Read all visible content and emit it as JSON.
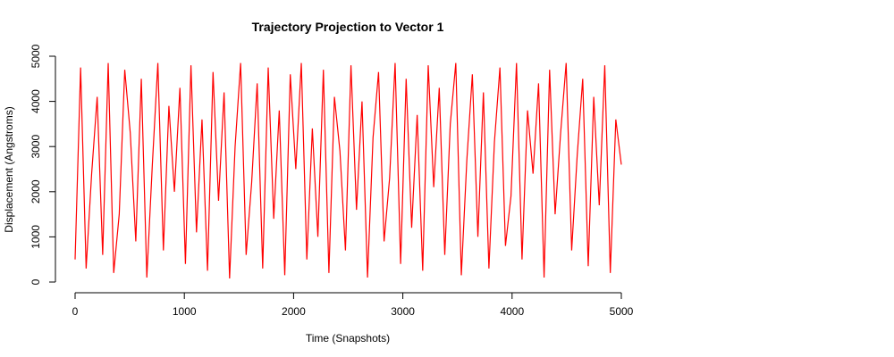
{
  "chart_data": {
    "type": "line",
    "title": "Trajectory Projection to Vector 1",
    "xlabel": "Time (Snapshots)",
    "ylabel": "Displacement (Angstroms)",
    "xlim": [
      0,
      5000
    ],
    "ylim": [
      0,
      5000
    ],
    "x_ticks": [
      0,
      1000,
      2000,
      3000,
      4000,
      5000
    ],
    "y_ticks": [
      0,
      1000,
      2000,
      3000,
      4000,
      5000
    ],
    "x_tick_labels": [
      "0",
      "1000",
      "2000",
      "3000",
      "4000",
      "5000"
    ],
    "y_tick_labels": [
      "0",
      "1000",
      "2000",
      "3000",
      "4000",
      "5000"
    ],
    "grid": false,
    "legend": "none",
    "colors": {
      "line": "#ff0000",
      "axis": "#000000"
    },
    "series": [
      {
        "x_start": 0,
        "x_end": 5000,
        "n_points": 5000,
        "values": [
          500,
          4750,
          300,
          2400,
          4100,
          600,
          4850,
          200,
          1500,
          4700,
          3300,
          900,
          4500,
          100,
          2600,
          4850,
          700,
          3900,
          2000,
          4300,
          400,
          4800,
          1100,
          3600,
          250,
          4650,
          1800,
          4200,
          80,
          3000,
          4850,
          600,
          2200,
          4400,
          300,
          4750,
          1400,
          3800,
          150,
          4600,
          2500,
          4850,
          500,
          3400,
          1000,
          4700,
          200,
          4100,
          2900,
          700,
          4800,
          1600,
          4000,
          100,
          3200,
          4650,
          900,
          2300,
          4850,
          400,
          4500,
          1200,
          3700,
          250,
          4800,
          2100,
          4300,
          600,
          3500,
          4850,
          150,
          2700,
          4600,
          1000,
          4200,
          300,
          3100,
          4750,
          800,
          1900,
          4850,
          500,
          3800,
          2400,
          4400,
          100,
          4700,
          1500,
          3300,
          4850,
          700,
          2800,
          4500,
          350,
          4100,
          1700,
          4800,
          200,
          3600,
          2600
        ]
      }
    ]
  }
}
